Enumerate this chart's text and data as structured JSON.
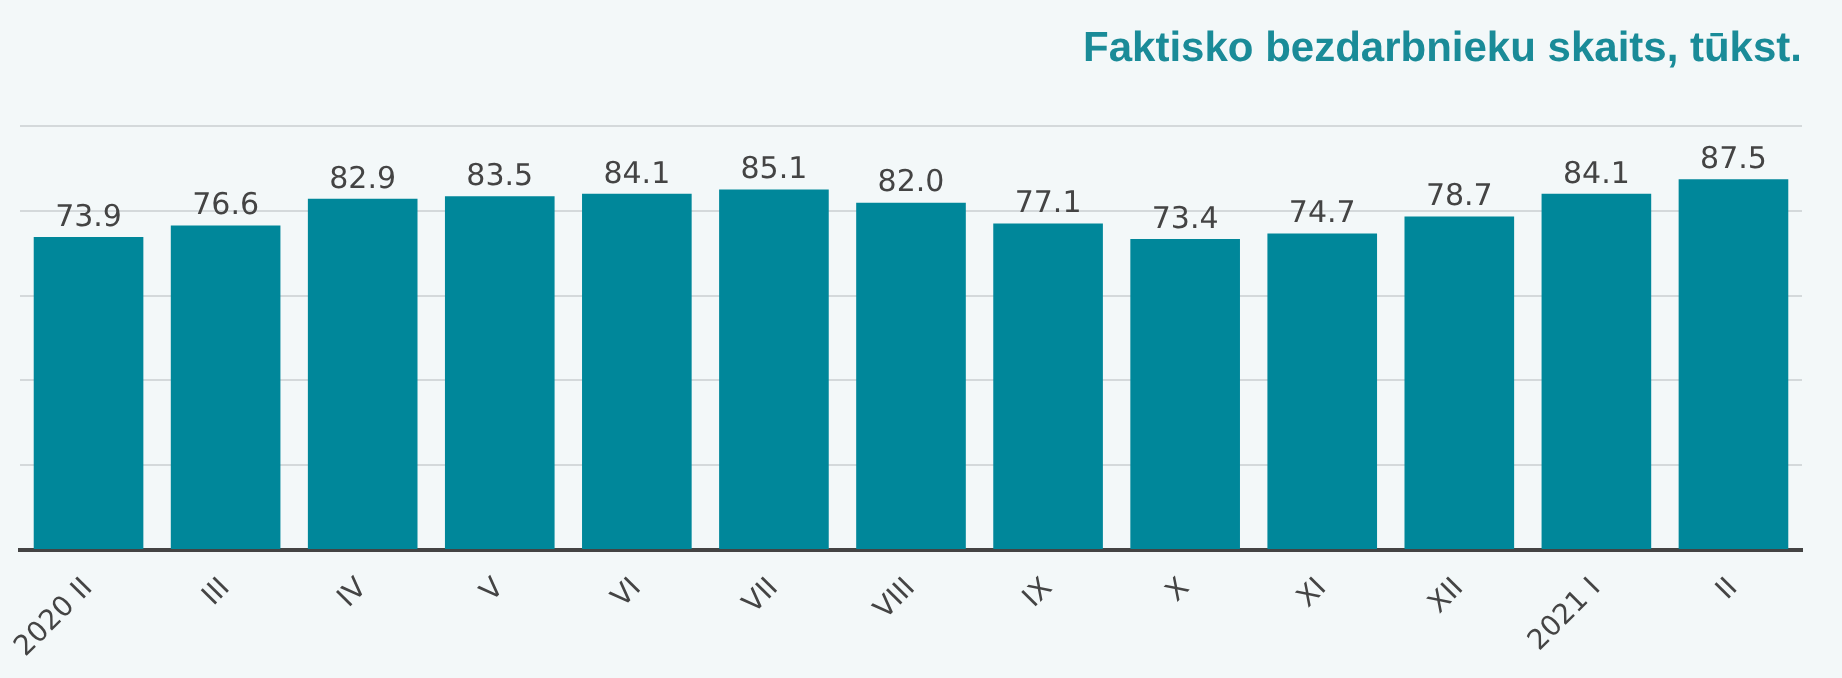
{
  "chart_data": {
    "type": "bar",
    "title": "Faktisko bezdarbnieku skaits, tūkst.",
    "categories": [
      "2020 II",
      "III",
      "IV",
      "V",
      "VI",
      "VII",
      "VIII",
      "IX",
      "X",
      "XI",
      "XII",
      "2021 I",
      "II"
    ],
    "values": [
      73.9,
      76.6,
      82.9,
      83.5,
      84.1,
      85.1,
      82.0,
      77.1,
      73.4,
      74.7,
      78.7,
      84.1,
      87.5
    ],
    "value_labels": [
      "73.9",
      "76.6",
      "82.9",
      "83.5",
      "84.1",
      "85.1",
      "82.0",
      "77.1",
      "73.4",
      "74.7",
      "78.7",
      "84.1",
      "87.5"
    ],
    "color": "#00879a",
    "ylim": [
      0,
      100
    ],
    "yticks": [
      {
        "value": 0,
        "label": null
      },
      {
        "value": 20,
        "label": null
      },
      {
        "value": 40,
        "label": null
      },
      {
        "value": 60,
        "label": null
      },
      {
        "value": 80,
        "label": null
      },
      {
        "value": 100,
        "label": null
      }
    ],
    "grid": "y",
    "tick_labels": "x"
  }
}
